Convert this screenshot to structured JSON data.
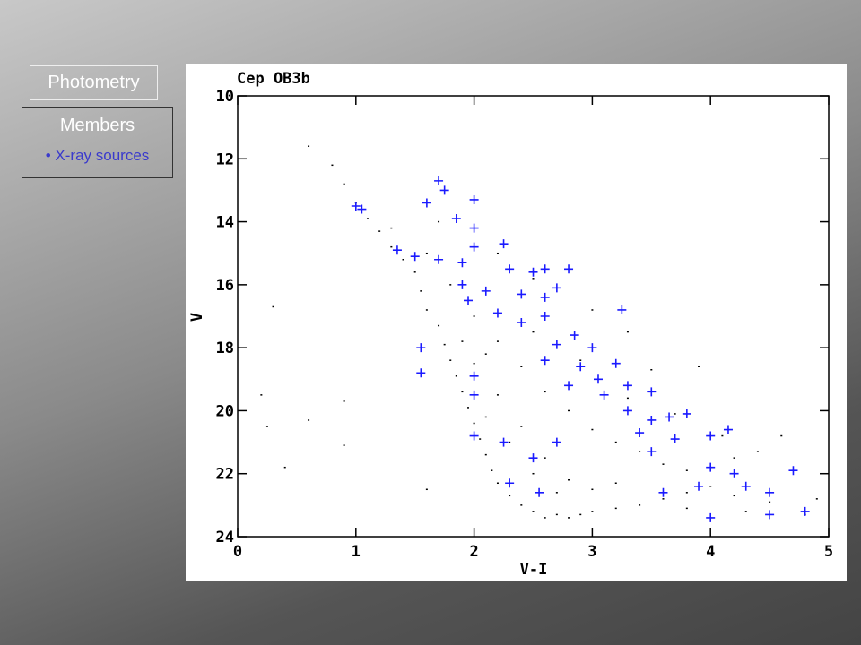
{
  "sidebar": {
    "tab": "Photometry",
    "panel_title": "Members",
    "items": [
      "X-ray sources"
    ]
  },
  "chart_data": {
    "type": "scatter",
    "title": "Cep OB3b",
    "x_label": "V-I",
    "y_label": "V",
    "xlim": [
      0,
      5
    ],
    "ylim": [
      24,
      10
    ],
    "xticks": [
      0,
      1,
      2,
      3,
      4,
      5
    ],
    "yticks": [
      10,
      12,
      14,
      16,
      18,
      20,
      22,
      24
    ],
    "series": [
      {
        "color": "#000000",
        "marker": "dot",
        "x": [
          0.6,
          0.8,
          0.9,
          1.0,
          1.1,
          1.2,
          1.3,
          1.4,
          1.5,
          1.55,
          1.6,
          1.7,
          1.75,
          1.8,
          1.85,
          1.9,
          1.95,
          2.0,
          2.05,
          2.1,
          2.15,
          2.2,
          2.3,
          2.4,
          2.5,
          2.6,
          2.7,
          2.8,
          2.9,
          3.0,
          3.2,
          3.4,
          3.6,
          3.8,
          4.0,
          4.2,
          4.5,
          4.8,
          1.3,
          1.6,
          1.8,
          2.0,
          2.2,
          2.4,
          2.6,
          2.8,
          3.0,
          3.2,
          3.4,
          3.6,
          3.8,
          4.0,
          4.2,
          4.4,
          2.0,
          2.2,
          2.4,
          2.6,
          2.8,
          3.0,
          3.2,
          2.1,
          2.3,
          2.5,
          2.7,
          1.9,
          2.1,
          2.5,
          2.9,
          3.3,
          3.7,
          4.1,
          3.5,
          3.0,
          2.2,
          1.7,
          2.5,
          3.3,
          3.9,
          0.3,
          0.2,
          0.25,
          0.4,
          0.6,
          0.9,
          0.9,
          1.6,
          4.6,
          4.9,
          3.8,
          4.3
        ],
        "values": [
          11.6,
          12.2,
          12.8,
          13.4,
          13.9,
          14.3,
          14.8,
          15.2,
          15.6,
          16.2,
          16.8,
          17.3,
          17.9,
          18.4,
          18.9,
          19.4,
          19.9,
          20.4,
          20.9,
          21.4,
          21.9,
          22.3,
          22.7,
          23.0,
          23.2,
          23.4,
          23.3,
          23.4,
          23.3,
          23.2,
          23.1,
          23.0,
          22.8,
          22.6,
          22.4,
          22.7,
          22.9,
          23.3,
          14.2,
          15.0,
          16.0,
          17.0,
          17.8,
          18.6,
          19.4,
          20.0,
          20.6,
          21.0,
          21.3,
          21.7,
          21.9,
          21.8,
          21.5,
          21.3,
          18.5,
          19.5,
          20.5,
          21.5,
          22.2,
          22.5,
          22.3,
          20.2,
          21.0,
          22.0,
          22.6,
          17.8,
          18.2,
          17.5,
          18.4,
          19.6,
          20.1,
          20.8,
          18.7,
          16.8,
          15.0,
          14.0,
          15.8,
          17.5,
          18.6,
          16.7,
          19.5,
          20.5,
          21.8,
          20.3,
          19.7,
          21.1,
          22.5,
          20.8,
          22.8,
          23.1,
          23.2
        ]
      },
      {
        "color": "#1a1aff",
        "marker": "plus",
        "x": [
          1.0,
          1.05,
          1.6,
          1.7,
          1.75,
          1.85,
          2.0,
          2.0,
          1.35,
          1.5,
          1.7,
          1.9,
          2.0,
          2.25,
          2.3,
          2.5,
          2.6,
          2.8,
          1.9,
          2.1,
          1.95,
          2.4,
          2.6,
          2.7,
          2.2,
          2.4,
          2.6,
          2.85,
          3.25,
          2.7,
          3.0,
          2.6,
          2.9,
          3.2,
          3.05,
          3.3,
          3.5,
          3.1,
          2.8,
          3.3,
          3.5,
          3.65,
          3.8,
          3.4,
          3.7,
          4.0,
          3.5,
          4.15,
          4.0,
          4.2,
          3.9,
          4.3,
          4.5,
          4.5,
          4.8,
          4.7,
          4.0,
          2.0,
          2.0,
          1.55,
          1.55,
          2.0,
          2.25,
          2.5,
          2.3,
          2.55,
          2.7,
          3.6
        ],
        "values": [
          13.5,
          13.6,
          13.4,
          12.7,
          13.0,
          13.9,
          14.2,
          13.3,
          14.9,
          15.1,
          15.2,
          15.3,
          14.8,
          14.7,
          15.5,
          15.6,
          15.5,
          15.5,
          16.0,
          16.2,
          16.5,
          16.3,
          16.4,
          16.1,
          16.9,
          17.2,
          17.0,
          17.6,
          16.8,
          17.9,
          18.0,
          18.4,
          18.6,
          18.5,
          19.0,
          19.2,
          19.4,
          19.5,
          19.2,
          20.0,
          20.3,
          20.2,
          20.1,
          20.7,
          20.9,
          20.8,
          21.3,
          20.6,
          21.8,
          22.0,
          22.4,
          22.4,
          22.6,
          23.3,
          23.2,
          21.9,
          23.4,
          18.9,
          19.5,
          18.0,
          18.8,
          20.8,
          21.0,
          21.5,
          22.3,
          22.6,
          21.0,
          22.6
        ]
      }
    ]
  }
}
